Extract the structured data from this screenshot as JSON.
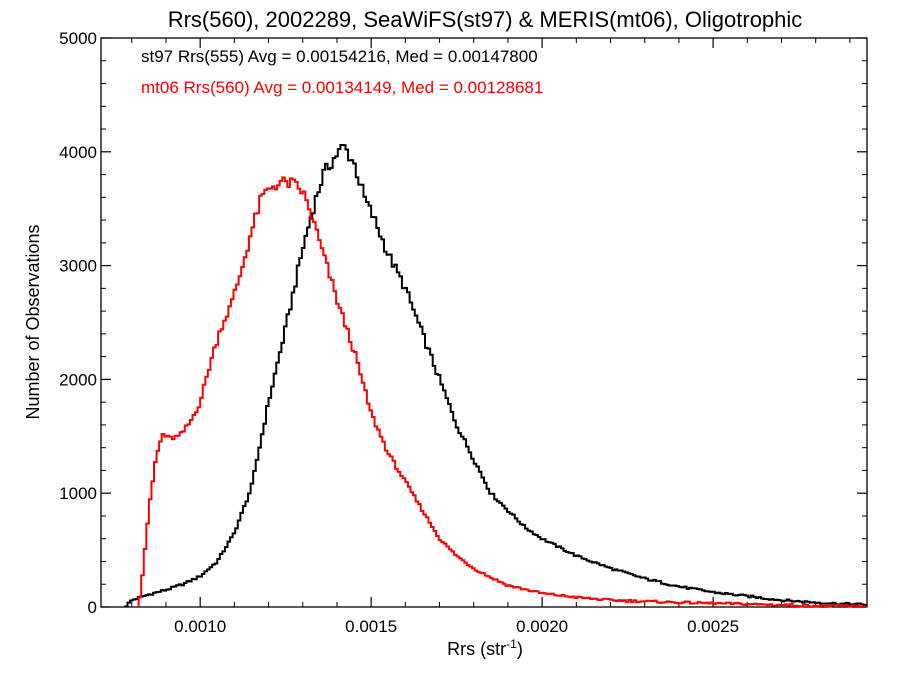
{
  "chart_data": {
    "type": "line",
    "title": "Rrs(560), 2002289, SeaWiFS(st97) & MERIS(mt06), Oligotrophic",
    "xlabel_main": "Rrs (str",
    "xlabel_sup": "-1",
    "xlabel_close": ")",
    "ylabel": "Number of Observations",
    "xlim": [
      0.00071,
      0.00295
    ],
    "ylim": [
      0,
      5000
    ],
    "x_ticks": [
      0.001,
      0.0015,
      0.002,
      0.0025
    ],
    "x_tick_labels": [
      "0.0010",
      "0.0015",
      "0.0020",
      "0.0025"
    ],
    "y_ticks": [
      0,
      1000,
      2000,
      3000,
      4000,
      5000
    ],
    "y_tick_labels": [
      "0",
      "1000",
      "2000",
      "3000",
      "4000",
      "5000"
    ],
    "grid": false,
    "legend_position": "top-left",
    "series": [
      {
        "name": "st97 Rrs(555)",
        "legend_text": "st97 Rrs(555) Avg = 0.00154216, Med = 0.00147800",
        "color": "#000000",
        "step": "histogram",
        "points": [
          [
            0.00078,
            0
          ],
          [
            0.0008,
            60
          ],
          [
            0.00085,
            110
          ],
          [
            0.0009,
            150
          ],
          [
            0.00095,
            200
          ],
          [
            0.001,
            270
          ],
          [
            0.00105,
            400
          ],
          [
            0.0011,
            650
          ],
          [
            0.00115,
            1050
          ],
          [
            0.0012,
            1800
          ],
          [
            0.00125,
            2450
          ],
          [
            0.0013,
            3150
          ],
          [
            0.00133,
            3500
          ],
          [
            0.00136,
            3800
          ],
          [
            0.0014,
            3980
          ],
          [
            0.00142,
            4050
          ],
          [
            0.00145,
            3900
          ],
          [
            0.00148,
            3600
          ],
          [
            0.00151,
            3400
          ],
          [
            0.00155,
            3100
          ],
          [
            0.0016,
            2800
          ],
          [
            0.00165,
            2400
          ],
          [
            0.0017,
            2000
          ],
          [
            0.00175,
            1600
          ],
          [
            0.0018,
            1300
          ],
          [
            0.00185,
            1000
          ],
          [
            0.0019,
            850
          ],
          [
            0.00195,
            700
          ],
          [
            0.002,
            600
          ],
          [
            0.0021,
            450
          ],
          [
            0.0022,
            340
          ],
          [
            0.0023,
            250
          ],
          [
            0.0024,
            180
          ],
          [
            0.0025,
            130
          ],
          [
            0.0026,
            95
          ],
          [
            0.0027,
            60
          ],
          [
            0.0028,
            40
          ],
          [
            0.0029,
            25
          ],
          [
            0.00295,
            20
          ]
        ]
      },
      {
        "name": "mt06 Rrs(560)",
        "legend_text": "mt06 Rrs(560) Avg = 0.00134149, Med = 0.00128681",
        "color": "#ff0000",
        "step": "histogram",
        "points": [
          [
            0.00082,
            0
          ],
          [
            0.00083,
            250
          ],
          [
            0.00085,
            850
          ],
          [
            0.00087,
            1300
          ],
          [
            0.00089,
            1520
          ],
          [
            0.00091,
            1480
          ],
          [
            0.00094,
            1500
          ],
          [
            0.00097,
            1620
          ],
          [
            0.001,
            1800
          ],
          [
            0.00103,
            2150
          ],
          [
            0.00106,
            2450
          ],
          [
            0.00109,
            2650
          ],
          [
            0.00112,
            2950
          ],
          [
            0.00115,
            3300
          ],
          [
            0.00118,
            3600
          ],
          [
            0.00121,
            3700
          ],
          [
            0.00124,
            3730
          ],
          [
            0.00127,
            3720
          ],
          [
            0.0013,
            3650
          ],
          [
            0.00133,
            3400
          ],
          [
            0.00136,
            3100
          ],
          [
            0.0014,
            2700
          ],
          [
            0.00145,
            2250
          ],
          [
            0.0015,
            1700
          ],
          [
            0.00155,
            1350
          ],
          [
            0.0016,
            1100
          ],
          [
            0.00165,
            850
          ],
          [
            0.0017,
            600
          ],
          [
            0.00175,
            450
          ],
          [
            0.0018,
            340
          ],
          [
            0.00185,
            260
          ],
          [
            0.0019,
            190
          ],
          [
            0.002,
            120
          ],
          [
            0.0021,
            85
          ],
          [
            0.0022,
            60
          ],
          [
            0.0024,
            40
          ],
          [
            0.0026,
            25
          ],
          [
            0.0028,
            12
          ],
          [
            0.00295,
            5
          ]
        ]
      }
    ]
  }
}
